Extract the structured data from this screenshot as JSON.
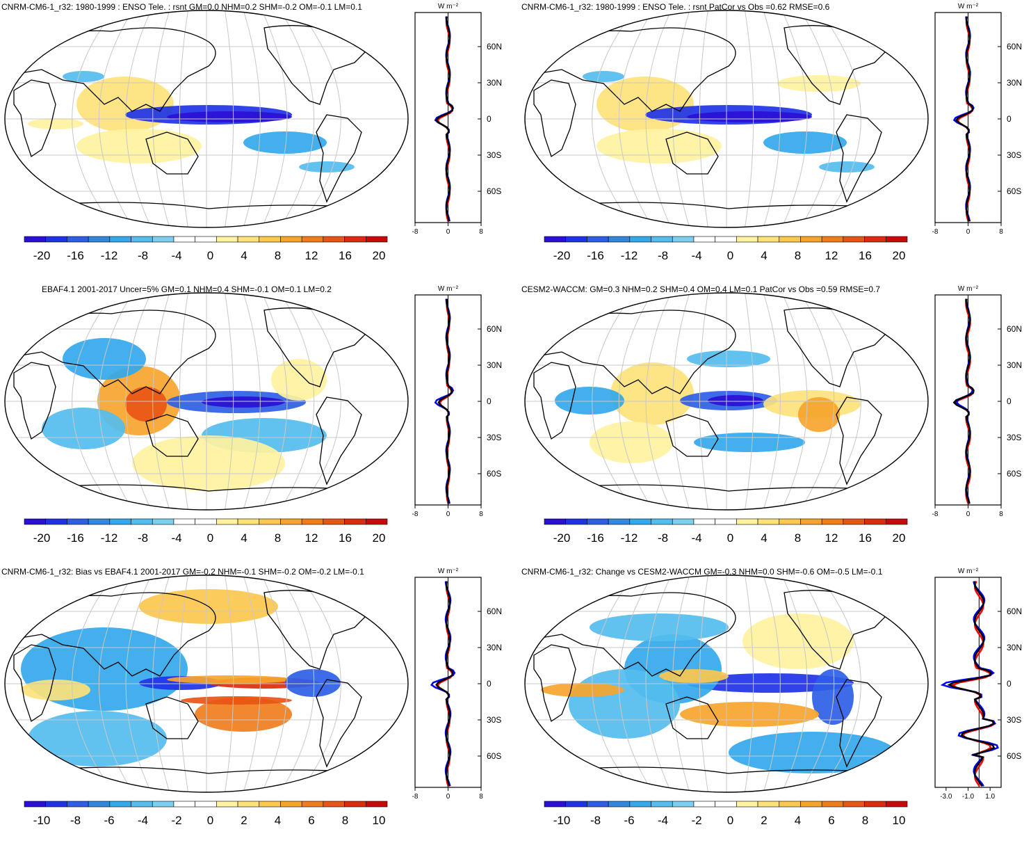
{
  "colors": {
    "scale": [
      "#2a0fd6",
      "#1f33e6",
      "#2e5ee6",
      "#3388dd",
      "#33a8ea",
      "#54bdee",
      "#7dcfef",
      "#ffffff",
      "#ffffff",
      "#fff2a0",
      "#fde27a",
      "#fbc84e",
      "#f6a52c",
      "#f07d1c",
      "#e85514",
      "#dc2c10",
      "#c80a0a"
    ],
    "obs_line": "#ff0000",
    "model_line": "#0000ff",
    "diff_line": "#000000"
  },
  "zonal_unit": "W m⁻²",
  "lat_labels": [
    "60N",
    "30N",
    "0",
    "30S",
    "60S"
  ],
  "panels": [
    {
      "id": "p1",
      "title": "CNRM-CM6-1_r32: 1980-1999 : ENSO Tele. : rsnt GM=0.0 NHM=0.2 SHM=-0.2 OM=-0.1 LM=0.1",
      "cbar_labels": [
        "-20",
        "-16",
        "-12",
        "-8",
        "-4",
        "0",
        "4",
        "8",
        "12",
        "16",
        "20"
      ],
      "zonal_ticks": [
        "-8",
        "0",
        "8"
      ],
      "zonal_range": [
        -8,
        8
      ]
    },
    {
      "id": "p2",
      "title": "CNRM-CM6-1_r32: 1980-1999 : ENSO Tele. : rsnt PatCor vs Obs =0.62 RMSE=0.6",
      "cbar_labels": [
        "-20",
        "-16",
        "-12",
        "-8",
        "-4",
        "0",
        "4",
        "8",
        "12",
        "16",
        "20"
      ],
      "zonal_ticks": [
        "-8",
        "0",
        "8"
      ],
      "zonal_range": [
        -8,
        8
      ]
    },
    {
      "id": "p3",
      "title": "EBAF4.1 2001-2017 Uncer=5% GM=0.1 NHM=0.4 SHM=-0.1 OM=0.1 LM=0.2",
      "cbar_labels": [
        "-20",
        "-16",
        "-12",
        "-8",
        "-4",
        "0",
        "4",
        "8",
        "12",
        "16",
        "20"
      ],
      "zonal_ticks": [
        "-8",
        "0",
        "8"
      ],
      "zonal_range": [
        -8,
        8
      ]
    },
    {
      "id": "p4",
      "title": "CESM2-WACCM: GM=0.3 NHM=0.2 SHM=0.4 OM=0.4 LM=0.1 PatCor vs Obs =0.59 RMSE=0.7",
      "cbar_labels": [
        "-20",
        "-16",
        "-12",
        "-8",
        "-4",
        "0",
        "4",
        "8",
        "12",
        "16",
        "20"
      ],
      "zonal_ticks": [
        "-8",
        "0",
        "8"
      ],
      "zonal_range": [
        -8,
        8
      ]
    },
    {
      "id": "p5",
      "title": "CNRM-CM6-1_r32: Bias vs EBAF4.1 2001-2017 GM=-0.2 NHM=-0.1 SHM=-0.2 OM=-0.2 LM=-0.1",
      "cbar_labels": [
        "-10",
        "-8",
        "-6",
        "-4",
        "-2",
        "0",
        "2",
        "4",
        "6",
        "8",
        "10"
      ],
      "zonal_ticks": [
        "-8",
        "0",
        "8"
      ],
      "zonal_range": [
        -8,
        8
      ]
    },
    {
      "id": "p6",
      "title": "CNRM-CM6-1_r32: Change vs CESM2-WACCM GM=-0.3 NHM=0.0 SHM=-0.6 OM=-0.5 LM=-0.1",
      "cbar_labels": [
        "-10",
        "-8",
        "-6",
        "-4",
        "-2",
        "0",
        "2",
        "4",
        "6",
        "8",
        "10"
      ],
      "zonal_ticks": [
        "-3.0",
        "-1.0",
        "1.0"
      ],
      "zonal_range": [
        -4,
        2
      ]
    }
  ]
}
